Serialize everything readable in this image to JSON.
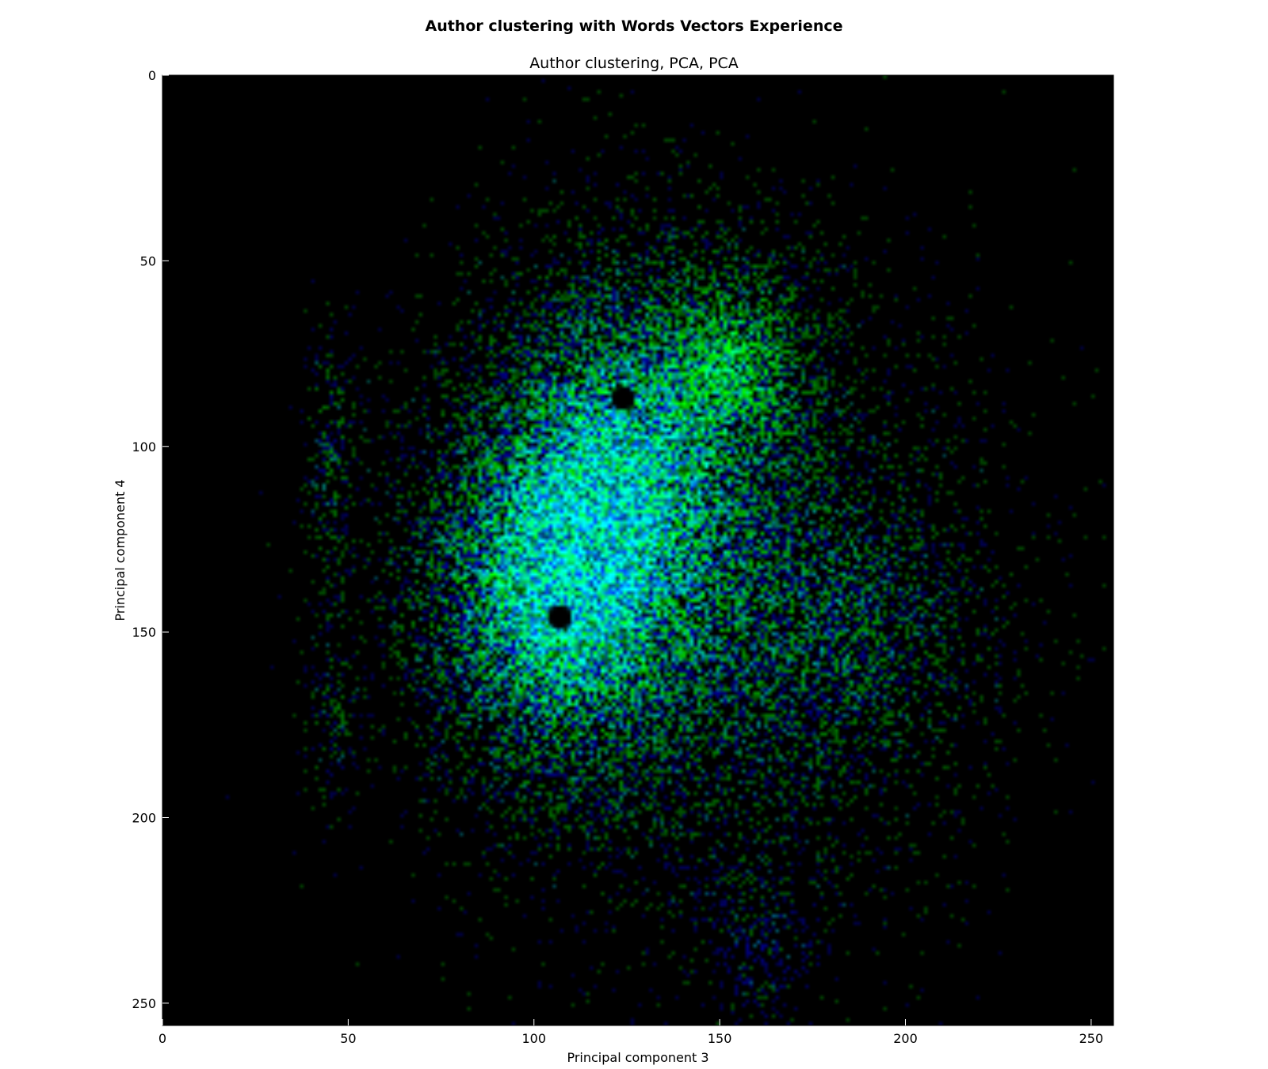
{
  "figure": {
    "suptitle": "Author clustering with Words Vectors Experience",
    "subtitle": "Author clustering, PCA, PCA"
  },
  "chart_data": {
    "type": "heatmap",
    "title": "Author clustering, PCA, PCA",
    "xlabel": "Principal component 3",
    "ylabel": "Principal component 4",
    "xlim": [
      0,
      256
    ],
    "ylim": [
      256,
      0
    ],
    "xticks": [
      0,
      50,
      100,
      150,
      200,
      250
    ],
    "yticks": [
      0,
      50,
      100,
      150,
      200,
      250
    ],
    "xtick_labels": [
      "0",
      "50",
      "100",
      "150",
      "200",
      "250"
    ],
    "ytick_labels": [
      "0",
      "50",
      "100",
      "150",
      "200",
      "250"
    ],
    "background_color": "#000000",
    "channels": [
      "green",
      "blue"
    ],
    "clusters": [
      {
        "x": 104,
        "y": 138,
        "sx": 22,
        "sy": 30,
        "weight": 1.0,
        "channel": "cyan"
      },
      {
        "x": 125,
        "y": 95,
        "sx": 22,
        "sy": 30,
        "weight": 0.8,
        "channel": "mixed"
      },
      {
        "x": 155,
        "y": 75,
        "sx": 12,
        "sy": 15,
        "weight": 0.6,
        "channel": "green"
      },
      {
        "x": 150,
        "y": 140,
        "sx": 35,
        "sy": 45,
        "weight": 0.5,
        "channel": "mixed"
      },
      {
        "x": 190,
        "y": 150,
        "sx": 20,
        "sy": 20,
        "weight": 0.3,
        "channel": "mixed"
      },
      {
        "x": 160,
        "y": 235,
        "sx": 10,
        "sy": 12,
        "weight": 0.3,
        "channel": "blue"
      },
      {
        "x": 45,
        "y": 100,
        "sx": 4,
        "sy": 20,
        "weight": 0.4,
        "channel": "mixed"
      },
      {
        "x": 45,
        "y": 170,
        "sx": 4,
        "sy": 15,
        "weight": 0.3,
        "channel": "mixed"
      }
    ],
    "empty_points": [
      {
        "x": 124,
        "y": 87
      },
      {
        "x": 107,
        "y": 146
      }
    ]
  }
}
